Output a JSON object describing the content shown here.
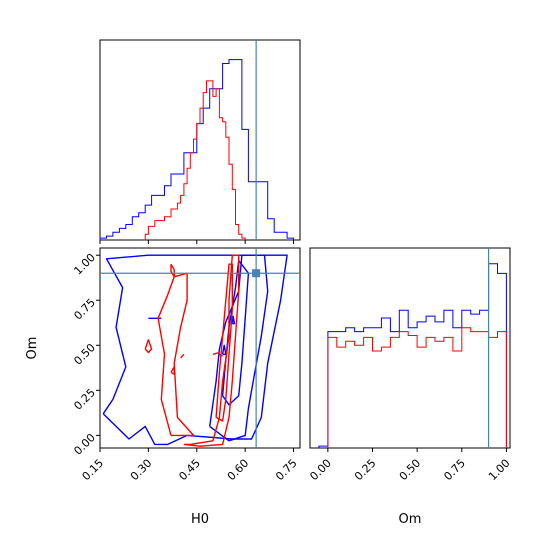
{
  "chart_data": {
    "type": "corner",
    "params": [
      "H0",
      "Om"
    ],
    "axis_labels": {
      "H0": "H0",
      "Om": "Om"
    },
    "xlim_H0": [
      0.15,
      0.77
    ],
    "xlim_Om": [
      -0.1,
      1.02
    ],
    "ylim_Om": [
      -0.07,
      1.04
    ],
    "ticks_H0": [
      "0.15",
      "0.30",
      "0.45",
      "0.60",
      "0.75"
    ],
    "ticks_Om": [
      "0.00",
      "0.25",
      "0.50",
      "0.75",
      "1.00"
    ],
    "truth": {
      "H0": 0.634,
      "Om": 0.9
    },
    "series": [
      {
        "name": "",
        "color": "#0000ff"
      },
      {
        "name": "",
        "color": "#ff0000"
      }
    ],
    "truth_color": "#4682b4",
    "hist_H0": {
      "blue": {
        "edges": [
          0.15,
          0.17,
          0.19,
          0.21,
          0.23,
          0.25,
          0.27,
          0.29,
          0.31,
          0.33,
          0.35,
          0.37,
          0.39,
          0.41,
          0.43,
          0.45,
          0.47,
          0.49,
          0.51,
          0.53,
          0.55,
          0.57,
          0.59,
          0.61,
          0.63,
          0.65,
          0.67,
          0.69,
          0.71,
          0.73,
          0.75
        ],
        "counts": [
          0.01,
          0.02,
          0.04,
          0.06,
          0.08,
          0.12,
          0.14,
          0.18,
          0.23,
          0.23,
          0.28,
          0.34,
          0.34,
          0.45,
          0.45,
          0.6,
          0.68,
          0.78,
          0.78,
          0.91,
          0.93,
          0.93,
          0.57,
          0.3,
          0.3,
          0.3,
          0.11,
          0.04,
          0.04,
          0.01
        ]
      },
      "red": {
        "edges": [
          0.29,
          0.3,
          0.31,
          0.32,
          0.33,
          0.34,
          0.35,
          0.36,
          0.37,
          0.38,
          0.39,
          0.4,
          0.41,
          0.42,
          0.43,
          0.44,
          0.45,
          0.46,
          0.47,
          0.48,
          0.49,
          0.5,
          0.51,
          0.52,
          0.53,
          0.54,
          0.55,
          0.56,
          0.57,
          0.58,
          0.59,
          0.6
        ],
        "counts": [
          0.03,
          0.07,
          0.07,
          0.1,
          0.1,
          0.1,
          0.12,
          0.12,
          0.16,
          0.16,
          0.19,
          0.23,
          0.29,
          0.37,
          0.45,
          0.52,
          0.6,
          0.68,
          0.76,
          0.82,
          0.82,
          0.74,
          0.78,
          0.63,
          0.61,
          0.53,
          0.39,
          0.26,
          0.08,
          0.03,
          0.01
        ]
      }
    },
    "hist_Om": {
      "blue": {
        "edges": [
          -0.05,
          0.0,
          0.05,
          0.1,
          0.15,
          0.2,
          0.25,
          0.3,
          0.35,
          0.4,
          0.45,
          0.5,
          0.55,
          0.6,
          0.65,
          0.7,
          0.75,
          0.8,
          0.85,
          0.9,
          0.95,
          1.0
        ],
        "counts": [
          0.01,
          0.6,
          0.6,
          0.62,
          0.6,
          0.62,
          0.62,
          0.67,
          0.6,
          0.71,
          0.62,
          0.65,
          0.68,
          0.65,
          0.71,
          0.62,
          0.71,
          0.69,
          0.71,
          0.95,
          0.9
        ]
      },
      "red": {
        "edges": [
          0.0,
          0.05,
          0.1,
          0.15,
          0.2,
          0.25,
          0.3,
          0.35,
          0.4,
          0.45,
          0.5,
          0.55,
          0.6,
          0.65,
          0.7,
          0.75,
          0.8,
          0.85,
          0.9,
          0.95,
          1.0
        ],
        "counts": [
          0.57,
          0.52,
          0.55,
          0.53,
          0.57,
          0.5,
          0.52,
          0.57,
          0.6,
          0.58,
          0.52,
          0.57,
          0.55,
          0.57,
          0.5,
          0.62,
          0.6,
          0.6,
          0.57,
          0.6
        ]
      }
    },
    "contours": {
      "blue": [
        [
          [
            0.16,
            0.12
          ],
          [
            0.19,
            0.2
          ],
          [
            0.23,
            0.38
          ],
          [
            0.2,
            0.6
          ],
          [
            0.22,
            0.82
          ],
          [
            0.17,
            0.98
          ],
          [
            0.3,
            1.0
          ],
          [
            0.56,
            1.0
          ],
          [
            0.73,
            1.0
          ],
          [
            0.71,
            0.75
          ],
          [
            0.67,
            0.4
          ],
          [
            0.65,
            0.1
          ],
          [
            0.62,
            -0.02
          ],
          [
            0.56,
            -0.02
          ],
          [
            0.42,
            0.0
          ],
          [
            0.36,
            -0.05
          ],
          [
            0.32,
            -0.05
          ],
          [
            0.29,
            0.05
          ],
          [
            0.24,
            -0.02
          ],
          [
            0.16,
            0.12
          ]
        ],
        [
          [
            0.49,
            0.05
          ],
          [
            0.51,
            0.3
          ],
          [
            0.52,
            0.48
          ],
          [
            0.54,
            0.63
          ],
          [
            0.58,
            0.8
          ],
          [
            0.59,
            1.0
          ],
          [
            0.66,
            1.0
          ],
          [
            0.67,
            0.8
          ],
          [
            0.65,
            0.55
          ],
          [
            0.63,
            0.35
          ],
          [
            0.61,
            0.15
          ],
          [
            0.6,
            0.0
          ],
          [
            0.55,
            -0.03
          ],
          [
            0.49,
            0.05
          ]
        ],
        [
          [
            0.53,
            0.22
          ],
          [
            0.54,
            0.42
          ],
          [
            0.55,
            0.6
          ],
          [
            0.57,
            0.82
          ],
          [
            0.58,
            0.97
          ],
          [
            0.61,
            0.9
          ],
          [
            0.6,
            0.65
          ],
          [
            0.59,
            0.4
          ],
          [
            0.58,
            0.22
          ],
          [
            0.55,
            0.17
          ],
          [
            0.53,
            0.22
          ]
        ],
        [
          [
            0.56,
            0.62
          ],
          [
            0.563,
            0.66
          ],
          [
            0.567,
            0.62
          ],
          [
            0.56,
            0.62
          ]
        ],
        [
          [
            0.53,
            0.45
          ],
          [
            0.535,
            0.5
          ],
          [
            0.54,
            0.45
          ],
          [
            0.53,
            0.45
          ]
        ],
        [
          [
            0.3,
            0.65
          ],
          [
            0.34,
            0.65
          ]
        ]
      ],
      "red": [
        [
          [
            0.37,
            0.0
          ],
          [
            0.34,
            0.2
          ],
          [
            0.35,
            0.45
          ],
          [
            0.33,
            0.65
          ],
          [
            0.36,
            0.78
          ],
          [
            0.38,
            0.88
          ],
          [
            0.42,
            0.9
          ],
          [
            0.42,
            0.75
          ],
          [
            0.4,
            0.6
          ],
          [
            0.38,
            0.4
          ],
          [
            0.39,
            0.1
          ],
          [
            0.44,
            0.0
          ],
          [
            0.37,
            0.0
          ]
        ],
        [
          [
            0.41,
            -0.05
          ],
          [
            0.43,
            -0.05
          ],
          [
            0.5,
            -0.03
          ],
          [
            0.52,
            0.1
          ],
          [
            0.53,
            0.3
          ],
          [
            0.55,
            0.55
          ],
          [
            0.55,
            0.75
          ],
          [
            0.56,
            1.0
          ],
          [
            0.58,
            1.0
          ],
          [
            0.58,
            0.8
          ],
          [
            0.57,
            0.55
          ],
          [
            0.56,
            0.3
          ],
          [
            0.55,
            0.1
          ],
          [
            0.53,
            -0.05
          ],
          [
            0.46,
            -0.06
          ],
          [
            0.41,
            -0.05
          ]
        ],
        [
          [
            0.51,
            0.1
          ],
          [
            0.52,
            0.35
          ],
          [
            0.53,
            0.55
          ],
          [
            0.54,
            0.75
          ],
          [
            0.55,
            0.95
          ],
          [
            0.56,
            0.95
          ],
          [
            0.56,
            0.7
          ],
          [
            0.55,
            0.45
          ],
          [
            0.54,
            0.2
          ],
          [
            0.53,
            0.08
          ],
          [
            0.51,
            0.1
          ]
        ],
        [
          [
            0.29,
            0.48
          ],
          [
            0.3,
            0.53
          ],
          [
            0.31,
            0.48
          ],
          [
            0.3,
            0.46
          ],
          [
            0.29,
            0.48
          ]
        ],
        [
          [
            0.37,
            0.95
          ],
          [
            0.38,
            0.92
          ],
          [
            0.38,
            0.88
          ],
          [
            0.37,
            0.91
          ],
          [
            0.37,
            0.95
          ]
        ],
        [
          [
            0.37,
            0.35
          ],
          [
            0.38,
            0.38
          ],
          [
            0.38,
            0.34
          ],
          [
            0.37,
            0.35
          ]
        ],
        [
          [
            0.4,
            0.43
          ],
          [
            0.41,
            0.45
          ]
        ],
        [
          [
            0.5,
            0.45
          ],
          [
            0.52,
            0.46
          ]
        ],
        [
          [
            0.52,
            0.45
          ],
          [
            0.53,
            0.44
          ]
        ]
      ]
    }
  }
}
